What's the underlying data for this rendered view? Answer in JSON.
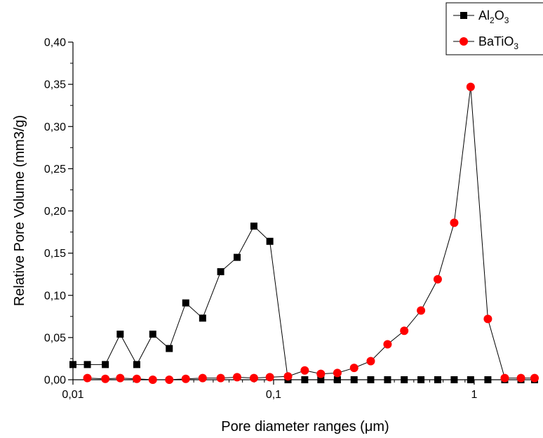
{
  "chart_data": {
    "type": "scatter",
    "x_scale": "log",
    "xlim": [
      0.01,
      2
    ],
    "ylim": [
      0,
      0.4
    ],
    "xlabel": "Pore diameter ranges (μm)",
    "ylabel": "Relative Pore Volume (mm3/g)",
    "x_ticks": [
      {
        "value": 0.01,
        "label": "0,01"
      },
      {
        "value": 0.1,
        "label": "0,1"
      },
      {
        "value": 1,
        "label": "1"
      }
    ],
    "y_ticks": [
      {
        "value": 0.0,
        "label": "0,00"
      },
      {
        "value": 0.05,
        "label": "0,05"
      },
      {
        "value": 0.1,
        "label": "0,10"
      },
      {
        "value": 0.15,
        "label": "0,15"
      },
      {
        "value": 0.2,
        "label": "0,20"
      },
      {
        "value": 0.25,
        "label": "0,25"
      },
      {
        "value": 0.3,
        "label": "0,30"
      },
      {
        "value": 0.35,
        "label": "0,35"
      },
      {
        "value": 0.4,
        "label": "0,40"
      }
    ],
    "grid": false,
    "legend_position": "top-right",
    "series": [
      {
        "name": "Al2O3",
        "legend_main": "Al",
        "legend_sub1": "2",
        "legend_mid": "O",
        "legend_sub2": "3",
        "marker": "square",
        "color": "#000000",
        "x": [
          0.01,
          0.0118,
          0.0145,
          0.0172,
          0.0208,
          0.025,
          0.0302,
          0.0365,
          0.0443,
          0.0545,
          0.0658,
          0.0798,
          0.0958,
          0.118,
          0.143,
          0.172,
          0.208,
          0.252,
          0.305,
          0.37,
          0.448,
          0.543,
          0.658,
          0.795,
          0.96,
          1.17,
          1.42,
          1.71,
          2.0
        ],
        "y": [
          0.018,
          0.018,
          0.018,
          0.054,
          0.018,
          0.054,
          0.037,
          0.091,
          0.073,
          0.128,
          0.145,
          0.182,
          0.164,
          0.0,
          0.0,
          0.0,
          0.0,
          0.0,
          0.0,
          0.0,
          0.0,
          0.0,
          0.0,
          0.0,
          0.0,
          0.0,
          0.0,
          0.0,
          0.0
        ]
      },
      {
        "name": "BaTiO3",
        "legend_main": "BaTiO",
        "legend_sub1": "3",
        "marker": "circle",
        "color": "#ff0000",
        "x": [
          0.0118,
          0.0145,
          0.0172,
          0.0208,
          0.025,
          0.0302,
          0.0365,
          0.0443,
          0.0545,
          0.0658,
          0.0798,
          0.0958,
          0.118,
          0.143,
          0.172,
          0.208,
          0.252,
          0.305,
          0.37,
          0.448,
          0.543,
          0.658,
          0.795,
          0.96,
          1.17,
          1.42,
          1.71,
          2.0
        ],
        "y": [
          0.002,
          0.001,
          0.002,
          0.001,
          0.0,
          0.0,
          0.001,
          0.002,
          0.002,
          0.003,
          0.002,
          0.003,
          0.004,
          0.011,
          0.007,
          0.008,
          0.014,
          0.022,
          0.042,
          0.058,
          0.082,
          0.119,
          0.186,
          0.347,
          0.072,
          0.002,
          0.002,
          0.002
        ]
      }
    ]
  }
}
